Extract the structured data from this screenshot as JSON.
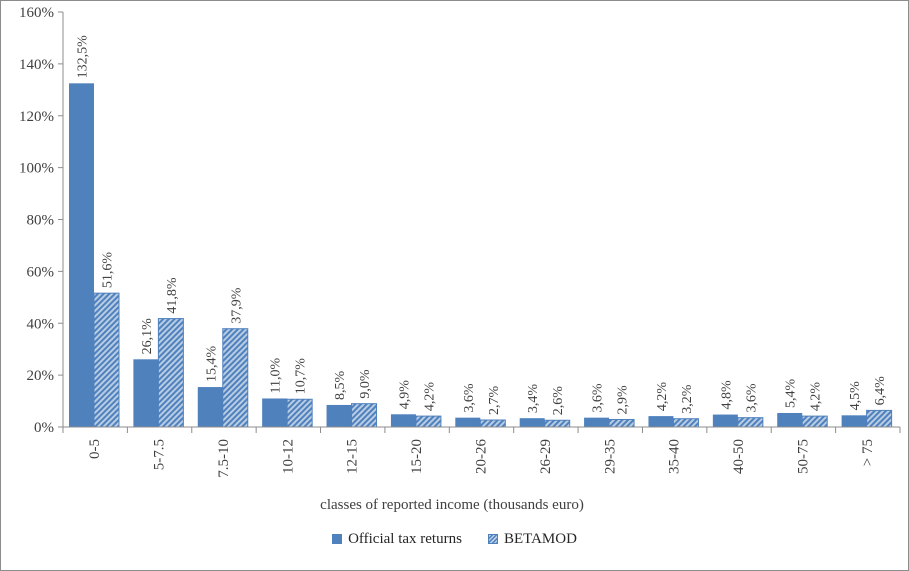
{
  "chart_data": {
    "type": "bar",
    "xlabel": "classes of reported income (thousands euro)",
    "ylabel": "",
    "ylim": [
      0,
      160
    ],
    "yticks": [
      "0%",
      "20%",
      "40%",
      "60%",
      "80%",
      "100%",
      "120%",
      "140%",
      "160%"
    ],
    "grid": false,
    "legend_position": "bottom",
    "categories": [
      "0-5",
      "5-7.5",
      "7.5-10",
      "10-12",
      "12-15",
      "15-20",
      "20-26",
      "26-29",
      "29-35",
      "35-40",
      "40-50",
      "50-75",
      "> 75"
    ],
    "series": [
      {
        "name": "Official tax returns",
        "values": [
          132.5,
          26.1,
          15.4,
          11.0,
          8.5,
          4.9,
          3.6,
          3.4,
          3.6,
          4.2,
          4.8,
          5.4,
          4.5
        ],
        "labels": [
          "132,5%",
          "26,1%",
          "15,4%",
          "11,0%",
          "8,5%",
          "4,9%",
          "3,6%",
          "3,4%",
          "3,6%",
          "4,2%",
          "4,8%",
          "5,4%",
          "4,5%"
        ],
        "color": "#4f81bd",
        "pattern": "solid"
      },
      {
        "name": "BETAMOD",
        "values": [
          51.6,
          41.8,
          37.9,
          10.7,
          9.0,
          4.2,
          2.7,
          2.6,
          2.9,
          3.2,
          3.6,
          4.2,
          6.4
        ],
        "labels": [
          "51,6%",
          "41,8%",
          "37,9%",
          "10,7%",
          "9,0%",
          "4,2%",
          "2,7%",
          "2,6%",
          "2,9%",
          "3,2%",
          "3,6%",
          "4,2%",
          "6,4%"
        ],
        "color": "#4f81bd",
        "pattern": "hatched"
      }
    ]
  }
}
